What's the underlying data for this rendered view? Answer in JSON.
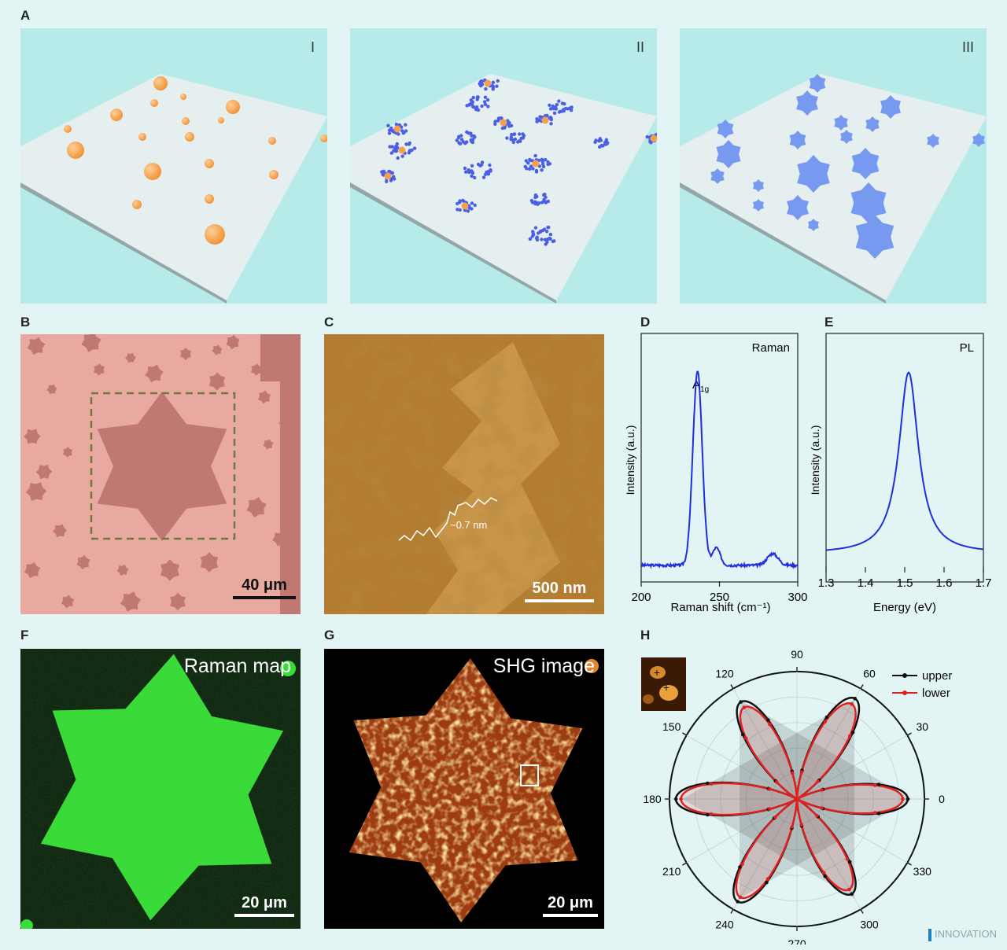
{
  "labels": {
    "A": "A",
    "B": "B",
    "C": "C",
    "D": "D",
    "E": "E",
    "F": "F",
    "G": "G",
    "H": "H"
  },
  "panelA": {
    "stage_I": "I",
    "stage_II": "II",
    "stage_III": "III"
  },
  "panelB": {
    "scale": "40 μm"
  },
  "panelC": {
    "step": "~0.7 nm",
    "scale": "500 nm"
  },
  "panelF": {
    "title": "Raman map",
    "scale": "20 μm"
  },
  "panelG": {
    "title": "SHG image",
    "scale": "20 μm"
  },
  "watermark": "INNOVATION",
  "colors": {
    "background": "#e3f4f4",
    "accent": "#1f2ee0",
    "raman_green": "#35e033",
    "polar_upper": "#111111",
    "polar_lower": "#e02020"
  },
  "chart_data": [
    {
      "type": "line",
      "title": "Raman",
      "xlabel": "Raman shift (cm⁻¹)",
      "ylabel": "Intensity (a.u.)",
      "xlim": [
        200,
        300
      ],
      "xticks": [
        "200",
        "250",
        "300"
      ],
      "annotation": "A1g",
      "annotation_main": "A",
      "annotation_sub": "1g",
      "peaks": [
        {
          "x": 236,
          "rel": 1.0,
          "width": 3.0
        },
        {
          "x": 248,
          "rel": 0.09,
          "width": 2.5
        },
        {
          "x": 284,
          "rel": 0.06,
          "width": 3.5
        }
      ],
      "baseline": 0.04,
      "series": [
        {
          "name": "Raman",
          "color": "#1f2ee0"
        }
      ]
    },
    {
      "type": "line",
      "title": "PL",
      "xlabel": "Energy (eV)",
      "ylabel": "Intensity (a.u.)",
      "xlim": [
        1.3,
        1.7
      ],
      "xticks": [
        "1.3",
        "1.4",
        "1.5",
        "1.6",
        "1.7"
      ],
      "peaks": [
        {
          "x": 1.51,
          "rel": 1.0,
          "width": 0.03
        }
      ],
      "baseline": 0.03,
      "series": [
        {
          "name": "PL",
          "color": "#1f2ee0"
        }
      ]
    },
    {
      "type": "polar",
      "angle_labels": [
        "0",
        "30",
        "60",
        "90",
        "120",
        "150",
        "180",
        "210",
        "240",
        "270",
        "300",
        "330"
      ],
      "legend": [
        {
          "name": "upper",
          "color": "#111111"
        },
        {
          "name": "lower",
          "color": "#e02020"
        }
      ],
      "lobes_deg": [
        0,
        60,
        120,
        180,
        240,
        300
      ],
      "upper_lobe_amplitudes": [
        0.87,
        0.91,
        0.88,
        0.95,
        0.93,
        0.86
      ],
      "lower_lobe_amplitudes": [
        0.83,
        0.86,
        0.83,
        0.91,
        0.89,
        0.82
      ],
      "rings": 5
    }
  ]
}
